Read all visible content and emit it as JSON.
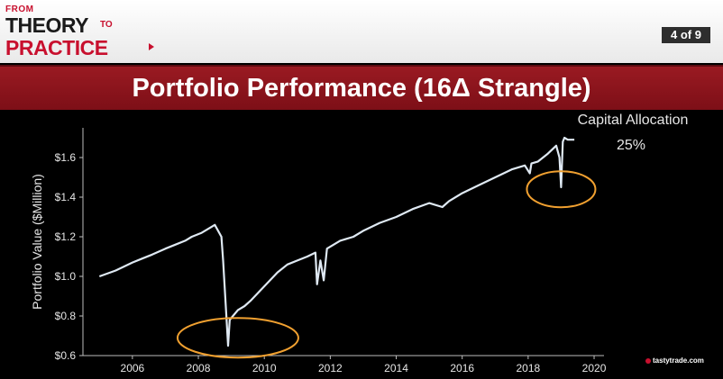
{
  "header": {
    "logo_from": "FROM",
    "logo_theory": "THEORY",
    "logo_to": "TO",
    "logo_practice": "PRACTICE",
    "page_indicator": "4 of 9",
    "title": "Portfolio Performance (16Δ Strangle)"
  },
  "brand": {
    "name": "tastytrade.com"
  },
  "colors": {
    "line": "#dfe9f3",
    "highlight": "#f0a030",
    "title_bg": "#8b1520",
    "accent": "#c8102e"
  },
  "chart_data": {
    "type": "line",
    "title": "",
    "xlabel": "",
    "ylabel": "Portfolio Value ($Million)",
    "xlim": [
      2004.5,
      2020.3
    ],
    "ylim": [
      0.6,
      1.75
    ],
    "xticks": [
      2006,
      2008,
      2010,
      2012,
      2014,
      2016,
      2018,
      2020
    ],
    "xtick_labels": [
      "2006",
      "2008",
      "2010",
      "2012",
      "2014",
      "2016",
      "2018",
      "2020"
    ],
    "yticks": [
      0.6,
      0.8,
      1.0,
      1.2,
      1.4,
      1.6
    ],
    "ytick_labels": [
      "$0.6",
      "$0.8",
      "$1.0",
      "$1.2",
      "$1.4",
      "$1.6"
    ],
    "grid": false,
    "legend": "none",
    "series": [
      {
        "x": [
          2005.0,
          2005.5,
          2006.0,
          2006.3,
          2006.6,
          2007.0,
          2007.3,
          2007.6,
          2007.8,
          2008.1,
          2008.3,
          2008.5,
          2008.7,
          2008.75,
          2008.85,
          2008.9,
          2008.95,
          2009.05,
          2009.2,
          2009.4,
          2009.6,
          2010.0,
          2010.4,
          2010.7,
          2011.0,
          2011.3,
          2011.55,
          2011.6,
          2011.7,
          2011.8,
          2011.9,
          2012.3,
          2012.7,
          2013.0,
          2013.5,
          2014.0,
          2014.5,
          2015.0,
          2015.4,
          2015.6,
          2016.0,
          2016.5,
          2017.0,
          2017.5,
          2017.9,
          2018.05,
          2018.1,
          2018.3,
          2018.6,
          2018.85,
          2018.95,
          2019.0,
          2019.05,
          2019.1,
          2019.2,
          2019.4
        ],
        "y": [
          1.0,
          1.03,
          1.07,
          1.09,
          1.11,
          1.14,
          1.16,
          1.18,
          1.2,
          1.22,
          1.24,
          1.26,
          1.2,
          1.08,
          0.8,
          0.65,
          0.78,
          0.8,
          0.83,
          0.85,
          0.88,
          0.95,
          1.02,
          1.06,
          1.08,
          1.1,
          1.12,
          0.96,
          1.08,
          0.98,
          1.14,
          1.18,
          1.2,
          1.23,
          1.27,
          1.3,
          1.34,
          1.37,
          1.35,
          1.38,
          1.42,
          1.46,
          1.5,
          1.54,
          1.56,
          1.52,
          1.57,
          1.58,
          1.62,
          1.66,
          1.6,
          1.45,
          1.68,
          1.7,
          1.69,
          1.69
        ]
      }
    ],
    "annotations": [
      {
        "text": "Capital Allocation"
      },
      {
        "text": "25%"
      }
    ],
    "highlights": [
      {
        "center": [
          2009.2,
          0.69
        ]
      },
      {
        "center": [
          2019.0,
          1.44
        ]
      }
    ]
  }
}
